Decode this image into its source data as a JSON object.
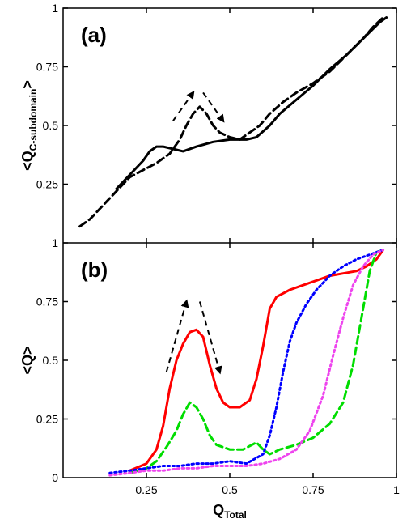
{
  "chart_data": {
    "type": "line",
    "shared_x_axis": {
      "label_main": "Q",
      "label_sub": "Total",
      "range": [
        0,
        1
      ],
      "ticks": [
        0.25,
        0.5,
        0.75,
        1
      ],
      "tick_labels": [
        "0.25",
        "0.5",
        "0.75",
        "1"
      ]
    },
    "panels": [
      {
        "panel_label": "(a)",
        "ylabel_main": "<Q",
        "ylabel_sub": "C-subdomain",
        "ylabel_end": ">",
        "ylim": [
          0,
          1
        ],
        "y_ticks": [
          0.25,
          0.5,
          0.75,
          1
        ],
        "y_tick_labels": [
          "0.25",
          "0.5",
          "0.75",
          "1"
        ],
        "series": [
          {
            "color": "#000000",
            "dash": "solid",
            "points": [
              [
                0.16,
                0.23
              ],
              [
                0.2,
                0.29
              ],
              [
                0.24,
                0.35
              ],
              [
                0.26,
                0.39
              ],
              [
                0.28,
                0.41
              ],
              [
                0.3,
                0.41
              ],
              [
                0.33,
                0.4
              ],
              [
                0.36,
                0.39
              ],
              [
                0.4,
                0.41
              ],
              [
                0.45,
                0.43
              ],
              [
                0.5,
                0.44
              ],
              [
                0.55,
                0.44
              ],
              [
                0.58,
                0.45
              ],
              [
                0.62,
                0.5
              ],
              [
                0.65,
                0.55
              ],
              [
                0.7,
                0.61
              ],
              [
                0.75,
                0.67
              ],
              [
                0.8,
                0.74
              ],
              [
                0.85,
                0.8
              ],
              [
                0.9,
                0.87
              ],
              [
                0.95,
                0.94
              ],
              [
                0.97,
                0.96
              ]
            ]
          },
          {
            "color": "#000000",
            "dash": "dashed",
            "points": [
              [
                0.05,
                0.07
              ],
              [
                0.08,
                0.1
              ],
              [
                0.12,
                0.16
              ],
              [
                0.16,
                0.22
              ],
              [
                0.2,
                0.28
              ],
              [
                0.24,
                0.31
              ],
              [
                0.28,
                0.34
              ],
              [
                0.32,
                0.38
              ],
              [
                0.35,
                0.44
              ],
              [
                0.37,
                0.5
              ],
              [
                0.39,
                0.55
              ],
              [
                0.41,
                0.58
              ],
              [
                0.43,
                0.55
              ],
              [
                0.45,
                0.5
              ],
              [
                0.47,
                0.47
              ],
              [
                0.5,
                0.45
              ],
              [
                0.53,
                0.44
              ],
              [
                0.56,
                0.47
              ],
              [
                0.59,
                0.5
              ],
              [
                0.62,
                0.55
              ],
              [
                0.66,
                0.6
              ],
              [
                0.7,
                0.64
              ],
              [
                0.75,
                0.68
              ],
              [
                0.8,
                0.73
              ],
              [
                0.85,
                0.8
              ],
              [
                0.9,
                0.87
              ],
              [
                0.93,
                0.92
              ],
              [
                0.96,
                0.96
              ]
            ]
          }
        ],
        "annotation_arrows": [
          {
            "from": [
              0.33,
              0.52
            ],
            "to": [
              0.39,
              0.64
            ]
          },
          {
            "from": [
              0.42,
              0.64
            ],
            "to": [
              0.48,
              0.52
            ]
          }
        ]
      },
      {
        "panel_label": "(b)",
        "ylabel_main": "<Q>",
        "ylim": [
          0,
          1
        ],
        "y_ticks": [
          0.25,
          0.5,
          0.75,
          1
        ],
        "y_tick_labels": [
          "0.25",
          "0.5",
          "0.75",
          "1"
        ],
        "series": [
          {
            "color": "#ff0000",
            "dash": "solid",
            "points": [
              [
                0.2,
                0.03
              ],
              [
                0.25,
                0.06
              ],
              [
                0.28,
                0.12
              ],
              [
                0.3,
                0.22
              ],
              [
                0.32,
                0.38
              ],
              [
                0.34,
                0.5
              ],
              [
                0.36,
                0.57
              ],
              [
                0.38,
                0.62
              ],
              [
                0.4,
                0.63
              ],
              [
                0.42,
                0.6
              ],
              [
                0.44,
                0.48
              ],
              [
                0.46,
                0.38
              ],
              [
                0.48,
                0.32
              ],
              [
                0.5,
                0.3
              ],
              [
                0.53,
                0.3
              ],
              [
                0.56,
                0.33
              ],
              [
                0.58,
                0.42
              ],
              [
                0.6,
                0.56
              ],
              [
                0.62,
                0.72
              ],
              [
                0.64,
                0.77
              ],
              [
                0.68,
                0.8
              ],
              [
                0.72,
                0.82
              ],
              [
                0.76,
                0.84
              ],
              [
                0.8,
                0.86
              ],
              [
                0.84,
                0.87
              ],
              [
                0.88,
                0.88
              ],
              [
                0.91,
                0.9
              ],
              [
                0.94,
                0.93
              ],
              [
                0.96,
                0.97
              ]
            ]
          },
          {
            "color": "#00dd00",
            "dash": "dashed",
            "points": [
              [
                0.2,
                0.02
              ],
              [
                0.25,
                0.04
              ],
              [
                0.28,
                0.07
              ],
              [
                0.31,
                0.13
              ],
              [
                0.34,
                0.2
              ],
              [
                0.36,
                0.27
              ],
              [
                0.38,
                0.32
              ],
              [
                0.4,
                0.3
              ],
              [
                0.42,
                0.25
              ],
              [
                0.44,
                0.18
              ],
              [
                0.46,
                0.14
              ],
              [
                0.5,
                0.12
              ],
              [
                0.54,
                0.12
              ],
              [
                0.58,
                0.15
              ],
              [
                0.6,
                0.12
              ],
              [
                0.62,
                0.1
              ],
              [
                0.65,
                0.12
              ],
              [
                0.7,
                0.14
              ],
              [
                0.75,
                0.17
              ],
              [
                0.8,
                0.23
              ],
              [
                0.84,
                0.32
              ],
              [
                0.87,
                0.48
              ],
              [
                0.9,
                0.72
              ],
              [
                0.92,
                0.88
              ],
              [
                0.94,
                0.96
              ],
              [
                0.96,
                0.97
              ]
            ]
          },
          {
            "color": "#0000ff",
            "dash": "dotted",
            "points": [
              [
                0.14,
                0.02
              ],
              [
                0.2,
                0.03
              ],
              [
                0.25,
                0.04
              ],
              [
                0.3,
                0.05
              ],
              [
                0.35,
                0.05
              ],
              [
                0.4,
                0.06
              ],
              [
                0.45,
                0.06
              ],
              [
                0.5,
                0.07
              ],
              [
                0.55,
                0.06
              ],
              [
                0.6,
                0.1
              ],
              [
                0.62,
                0.18
              ],
              [
                0.64,
                0.3
              ],
              [
                0.66,
                0.45
              ],
              [
                0.68,
                0.58
              ],
              [
                0.7,
                0.66
              ],
              [
                0.73,
                0.74
              ],
              [
                0.76,
                0.8
              ],
              [
                0.8,
                0.86
              ],
              [
                0.84,
                0.9
              ],
              [
                0.88,
                0.93
              ],
              [
                0.92,
                0.95
              ],
              [
                0.96,
                0.97
              ]
            ]
          },
          {
            "color": "#ee44ee",
            "dash": "dotted",
            "points": [
              [
                0.14,
                0.01
              ],
              [
                0.2,
                0.02
              ],
              [
                0.25,
                0.03
              ],
              [
                0.3,
                0.03
              ],
              [
                0.35,
                0.04
              ],
              [
                0.4,
                0.04
              ],
              [
                0.45,
                0.05
              ],
              [
                0.5,
                0.05
              ],
              [
                0.55,
                0.05
              ],
              [
                0.6,
                0.06
              ],
              [
                0.65,
                0.08
              ],
              [
                0.7,
                0.12
              ],
              [
                0.74,
                0.2
              ],
              [
                0.78,
                0.35
              ],
              [
                0.81,
                0.52
              ],
              [
                0.84,
                0.68
              ],
              [
                0.87,
                0.82
              ],
              [
                0.9,
                0.9
              ],
              [
                0.93,
                0.95
              ],
              [
                0.96,
                0.97
              ]
            ]
          }
        ],
        "annotation_arrows": [
          {
            "from": [
              0.31,
              0.45
            ],
            "to": [
              0.37,
              0.75
            ]
          },
          {
            "from": [
              0.41,
              0.75
            ],
            "to": [
              0.47,
              0.45
            ]
          }
        ]
      }
    ]
  }
}
